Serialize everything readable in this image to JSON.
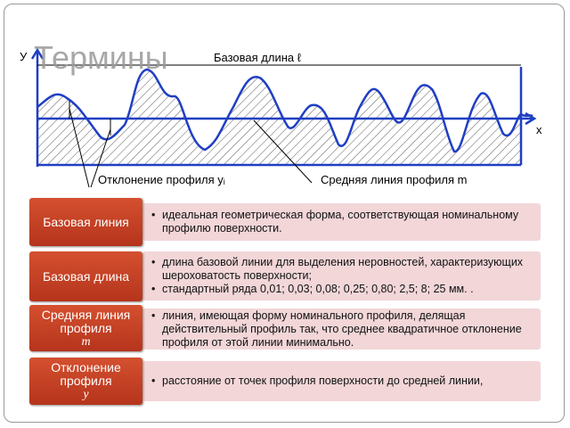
{
  "title": "Термины",
  "figure": {
    "y_axis": "У",
    "x_axis": "х",
    "base_length": "Базовая длина ℓ",
    "deviation": "Отклонение профиля уᵢ",
    "mean_line": "Средняя линия профиля m"
  },
  "terms": [
    {
      "term": "Базовая линия",
      "items": [
        "идеальная геометрическая форма, соответствующая номинальному профилю поверхности."
      ]
    },
    {
      "term": "Базовая длина",
      "items": [
        "длина базовой линии для выделения неровностей, характеризующих шероховатость поверхности;",
        "стандартный ряда 0,01; 0,03; 0,08; 0,25; 0,80; 2,5; 8; 25 мм. ."
      ]
    },
    {
      "term": "Средняя линия профиля",
      "symbol": "m",
      "items": [
        "линия, имеющая форму номинального профиля, делящая действительный профиль так, что среднее квадратичное отклонение профиля от этой линии минимально."
      ]
    },
    {
      "term": "Отклонение профиля",
      "symbol": "y",
      "items": [
        "расстояние от точек профиля поверхности до средней линии,"
      ]
    }
  ]
}
